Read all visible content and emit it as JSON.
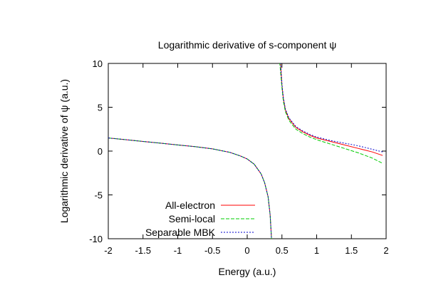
{
  "chart_data": {
    "type": "line",
    "title": "Logarithmic derivative of s-component ψ",
    "xlabel": "Energy (a.u.)",
    "ylabel": "Logarithmic derivative of ψ (a.u.)",
    "xlim": [
      -2,
      2
    ],
    "ylim": [
      -10,
      10
    ],
    "xticks": [
      -2,
      -1.5,
      -1,
      -0.5,
      0,
      0.5,
      1,
      1.5,
      2
    ],
    "xtick_labels": [
      "-2",
      "-1.5",
      "-1",
      "-0.5",
      "0",
      "0.5",
      "1",
      "1.5",
      "2"
    ],
    "yticks": [
      -10,
      -5,
      0,
      5,
      10
    ],
    "ytick_labels": [
      "-10",
      "-5",
      "0",
      "5",
      "10"
    ],
    "grid": false,
    "legend": "bottom-left",
    "series": [
      {
        "name": "All-electron",
        "color": "#ff0000",
        "dash": "solid",
        "x": [
          -2,
          -1.75,
          -1.5,
          -1.25,
          -1,
          -0.75,
          -0.5,
          -0.25,
          -0.1,
          0,
          0.1,
          0.2,
          0.25,
          0.3,
          0.33,
          0.35,
          0.48,
          0.5,
          0.52,
          0.55,
          0.6,
          0.7,
          0.8,
          0.9,
          1.0,
          1.2,
          1.4,
          1.6,
          1.8,
          1.95
        ],
        "y": [
          1.5,
          1.3,
          1.1,
          0.9,
          0.7,
          0.5,
          0.25,
          -0.15,
          -0.55,
          -0.9,
          -1.5,
          -2.6,
          -3.6,
          -5.2,
          -7.3,
          -10,
          10,
          7.5,
          6.0,
          4.7,
          3.7,
          2.7,
          2.2,
          1.8,
          1.5,
          1.1,
          0.7,
          0.3,
          -0.1,
          -0.5
        ]
      },
      {
        "name": "Semi-local",
        "color": "#00cc00",
        "dash": "dash",
        "x": [
          -2,
          -1.75,
          -1.5,
          -1.25,
          -1,
          -0.75,
          -0.5,
          -0.25,
          -0.1,
          0,
          0.1,
          0.2,
          0.25,
          0.3,
          0.33,
          0.35,
          0.47,
          0.5,
          0.52,
          0.55,
          0.6,
          0.7,
          0.8,
          0.9,
          1.0,
          1.2,
          1.4,
          1.6,
          1.8,
          1.95
        ],
        "y": [
          1.5,
          1.3,
          1.1,
          0.9,
          0.7,
          0.5,
          0.25,
          -0.15,
          -0.55,
          -0.9,
          -1.5,
          -2.6,
          -3.6,
          -5.2,
          -7.3,
          -10,
          10,
          7.2,
          5.7,
          4.5,
          3.5,
          2.5,
          2.0,
          1.6,
          1.3,
          0.8,
          0.3,
          -0.2,
          -0.8,
          -1.4
        ]
      },
      {
        "name": "Separable MBK",
        "color": "#0000cc",
        "dash": "dot",
        "x": [
          -2,
          -1.75,
          -1.5,
          -1.25,
          -1,
          -0.75,
          -0.5,
          -0.25,
          -0.1,
          0,
          0.1,
          0.2,
          0.25,
          0.3,
          0.33,
          0.35,
          0.48,
          0.5,
          0.52,
          0.55,
          0.6,
          0.7,
          0.8,
          0.9,
          1.0,
          1.2,
          1.4,
          1.6,
          1.8,
          1.95
        ],
        "y": [
          1.5,
          1.3,
          1.1,
          0.9,
          0.7,
          0.5,
          0.25,
          -0.15,
          -0.55,
          -0.9,
          -1.5,
          -2.6,
          -3.6,
          -5.2,
          -7.3,
          -10,
          10,
          7.6,
          6.1,
          4.8,
          3.8,
          2.8,
          2.3,
          1.9,
          1.6,
          1.2,
          0.9,
          0.6,
          0.2,
          -0.1
        ]
      }
    ]
  }
}
